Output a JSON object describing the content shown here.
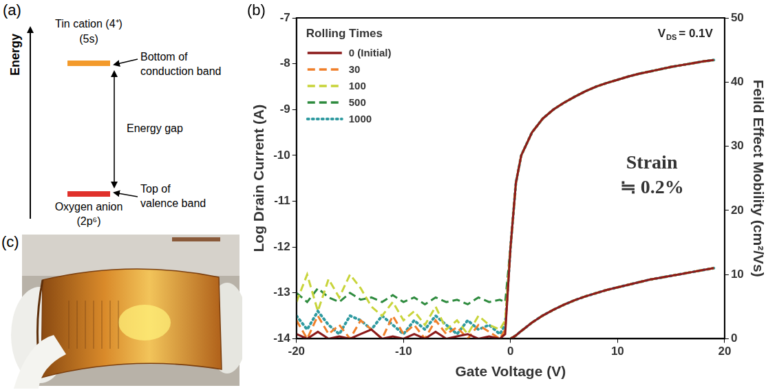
{
  "diagram": {
    "panel_label": "(a)",
    "axis_label": "Energy",
    "upper_level": {
      "label": [
        "Tin cation (4⁺)",
        "(5s)"
      ],
      "pointer": [
        "Bottom of",
        "conduction band"
      ],
      "color": "#f39a2b"
    },
    "gap_label": "Energy gap",
    "lower_level": {
      "label": [
        "Oxygen anion",
        "(2p⁶)"
      ],
      "pointer": [
        "Top of",
        "valence band"
      ],
      "color": "#e0312b"
    }
  },
  "photo": {
    "panel_label": "(c)"
  },
  "chart_data": {
    "panel_label": "(b)",
    "type": "line",
    "x_label": "Gate Voltage (V)",
    "y_label": "Log Drain Current (A)",
    "y2_label": "Feild Effect Mobility (cm²/Vs)",
    "legend_title": "Rolling Times",
    "legend": "upper left",
    "vds_label": {
      "text": "V",
      "subscript": "DS",
      "text_after": "= 0.1V"
    },
    "strain_label": [
      "Strain",
      "≒ 0.2%"
    ],
    "grid": false,
    "xlim": [
      -20,
      20
    ],
    "xticks": [
      -20,
      -10,
      0,
      10,
      20
    ],
    "ylim": [
      -14,
      -7
    ],
    "yticks": [
      -14,
      -13,
      -12,
      -11,
      -10,
      -9,
      -8,
      -7
    ],
    "y2lim": [
      0,
      50
    ],
    "y2ticks": [
      0,
      10,
      20,
      30,
      40,
      50
    ],
    "x": [
      -20,
      -19,
      -18,
      -17,
      -16,
      -15,
      -14,
      -13,
      -12,
      -11,
      -10,
      -9,
      -8,
      -7,
      -6,
      -5,
      -4,
      -3,
      -2,
      -1,
      -0.5,
      0,
      0.5,
      1,
      2,
      3,
      4,
      5,
      6,
      7,
      8,
      9,
      10,
      11,
      12,
      13,
      14,
      15,
      16,
      17,
      18,
      19
    ],
    "series": [
      {
        "name": "0 (Initial)",
        "color": "#8b1a1a",
        "line_style": "solid",
        "values": [
          -13.9,
          -14,
          -13.85,
          -14,
          -13.95,
          -14,
          -13.9,
          -13.8,
          -14,
          -13.95,
          -14,
          -13.9,
          -14,
          -13.85,
          -14,
          -13.95,
          -13.9,
          -14,
          -13.95,
          -14,
          -13.9,
          -12.0,
          -10.6,
          -10.0,
          -9.5,
          -9.2,
          -9.0,
          -8.85,
          -8.72,
          -8.6,
          -8.5,
          -8.42,
          -8.35,
          -8.28,
          -8.22,
          -8.17,
          -8.12,
          -8.07,
          -8.03,
          -7.99,
          -7.95,
          -7.92
        ],
        "y2_values": [
          null,
          null,
          null,
          null,
          null,
          null,
          null,
          null,
          null,
          null,
          null,
          null,
          null,
          null,
          null,
          null,
          null,
          null,
          null,
          null,
          null,
          0,
          0.5,
          1.2,
          2.5,
          3.6,
          4.5,
          5.3,
          6.0,
          6.6,
          7.1,
          7.6,
          8.0,
          8.4,
          8.8,
          9.2,
          9.5,
          9.8,
          10.1,
          10.4,
          10.7,
          11.0
        ]
      },
      {
        "name": "30",
        "color": "#f07f2a",
        "line_style": "dashed",
        "values": [
          -13.6,
          -14,
          -13.5,
          -13.9,
          -13.7,
          -14,
          -13.6,
          -13.8,
          -14,
          -13.5,
          -13.9,
          -13.7,
          -14,
          -13.6,
          -13.9,
          -13.75,
          -14,
          -13.7,
          -13.85,
          -14,
          -13.8,
          -12.0,
          -10.6,
          -10.0,
          -9.5,
          -9.2,
          -9.0,
          -8.85,
          -8.72,
          -8.6,
          -8.5,
          -8.42,
          -8.35,
          -8.28,
          -8.22,
          -8.17,
          -8.12,
          -8.07,
          -8.03,
          -7.99,
          -7.95,
          -7.92
        ],
        "y2_values": [
          null,
          null,
          null,
          null,
          null,
          null,
          null,
          null,
          null,
          null,
          null,
          null,
          null,
          null,
          null,
          null,
          null,
          null,
          null,
          null,
          null,
          0,
          0.5,
          1.2,
          2.5,
          3.6,
          4.5,
          5.3,
          6.0,
          6.6,
          7.1,
          7.6,
          8.0,
          8.4,
          8.8,
          9.2,
          9.5,
          9.8,
          10.1,
          10.4,
          10.7,
          11.0
        ]
      },
      {
        "name": "100",
        "color": "#c8d43a",
        "line_style": "dashed",
        "values": [
          -13.2,
          -12.6,
          -13.4,
          -12.7,
          -13.1,
          -12.6,
          -12.9,
          -13.3,
          -13.5,
          -13.2,
          -13.6,
          -13.4,
          -13.7,
          -13.3,
          -13.8,
          -13.6,
          -13.9,
          -13.5,
          -13.7,
          -13.8,
          -13.6,
          -12.0,
          -10.6,
          -10.0,
          -9.5,
          -9.2,
          -9.0,
          -8.85,
          -8.72,
          -8.6,
          -8.5,
          -8.42,
          -8.35,
          -8.28,
          -8.22,
          -8.17,
          -8.12,
          -8.07,
          -8.03,
          -7.99,
          -7.95,
          -7.92
        ],
        "y2_values": [
          null,
          null,
          null,
          null,
          null,
          null,
          null,
          null,
          null,
          null,
          null,
          null,
          null,
          null,
          null,
          null,
          null,
          null,
          null,
          null,
          null,
          0,
          0.5,
          1.2,
          2.5,
          3.6,
          4.5,
          5.3,
          6.0,
          6.6,
          7.1,
          7.6,
          8.0,
          8.4,
          8.8,
          9.2,
          9.5,
          9.8,
          10.1,
          10.4,
          10.7,
          11.0
        ]
      },
      {
        "name": "500",
        "color": "#2e8b3e",
        "line_style": "dashed",
        "values": [
          -13,
          -13.2,
          -12.9,
          -13.1,
          -13.2,
          -13,
          -13.15,
          -13.1,
          -13.2,
          -13.05,
          -13.2,
          -13.1,
          -13.25,
          -13.1,
          -13.2,
          -13.15,
          -13.25,
          -13.1,
          -13.2,
          -13.15,
          -13.2,
          -12.0,
          -10.6,
          -10.0,
          -9.5,
          -9.2,
          -9.0,
          -8.85,
          -8.72,
          -8.6,
          -8.5,
          -8.42,
          -8.35,
          -8.28,
          -8.22,
          -8.17,
          -8.12,
          -8.07,
          -8.03,
          -7.99,
          -7.95,
          -7.92
        ],
        "y2_values": [
          null,
          null,
          null,
          null,
          null,
          null,
          null,
          null,
          null,
          null,
          null,
          null,
          null,
          null,
          null,
          null,
          null,
          null,
          null,
          null,
          null,
          0,
          0.5,
          1.2,
          2.5,
          3.6,
          4.5,
          5.3,
          6.0,
          6.6,
          7.1,
          7.6,
          8.0,
          8.4,
          8.8,
          9.2,
          9.5,
          9.8,
          10.1,
          10.4,
          10.7,
          11.0
        ]
      },
      {
        "name": "1000",
        "color": "#2f9aa0",
        "line_style": "dotted",
        "values": [
          -13.5,
          -13.8,
          -13.4,
          -13.7,
          -13.9,
          -13.5,
          -13.6,
          -13.8,
          -13.5,
          -13.7,
          -13.9,
          -13.6,
          -13.8,
          -13.5,
          -13.7,
          -13.9,
          -13.6,
          -13.8,
          -13.7,
          -13.9,
          -13.7,
          -12.0,
          -10.6,
          -10.0,
          -9.5,
          -9.2,
          -9.0,
          -8.85,
          -8.72,
          -8.6,
          -8.5,
          -8.42,
          -8.35,
          -8.28,
          -8.22,
          -8.17,
          -8.12,
          -8.07,
          -8.03,
          -7.99,
          -7.95,
          -7.92
        ],
        "y2_values": [
          null,
          null,
          null,
          null,
          null,
          null,
          null,
          null,
          null,
          null,
          null,
          null,
          null,
          null,
          null,
          null,
          null,
          null,
          null,
          null,
          null,
          0,
          0.5,
          1.2,
          2.5,
          3.6,
          4.5,
          5.3,
          6.0,
          6.6,
          7.1,
          7.6,
          8.0,
          8.4,
          8.8,
          9.2,
          9.5,
          9.8,
          10.1,
          10.4,
          10.7,
          11.0
        ]
      }
    ]
  }
}
